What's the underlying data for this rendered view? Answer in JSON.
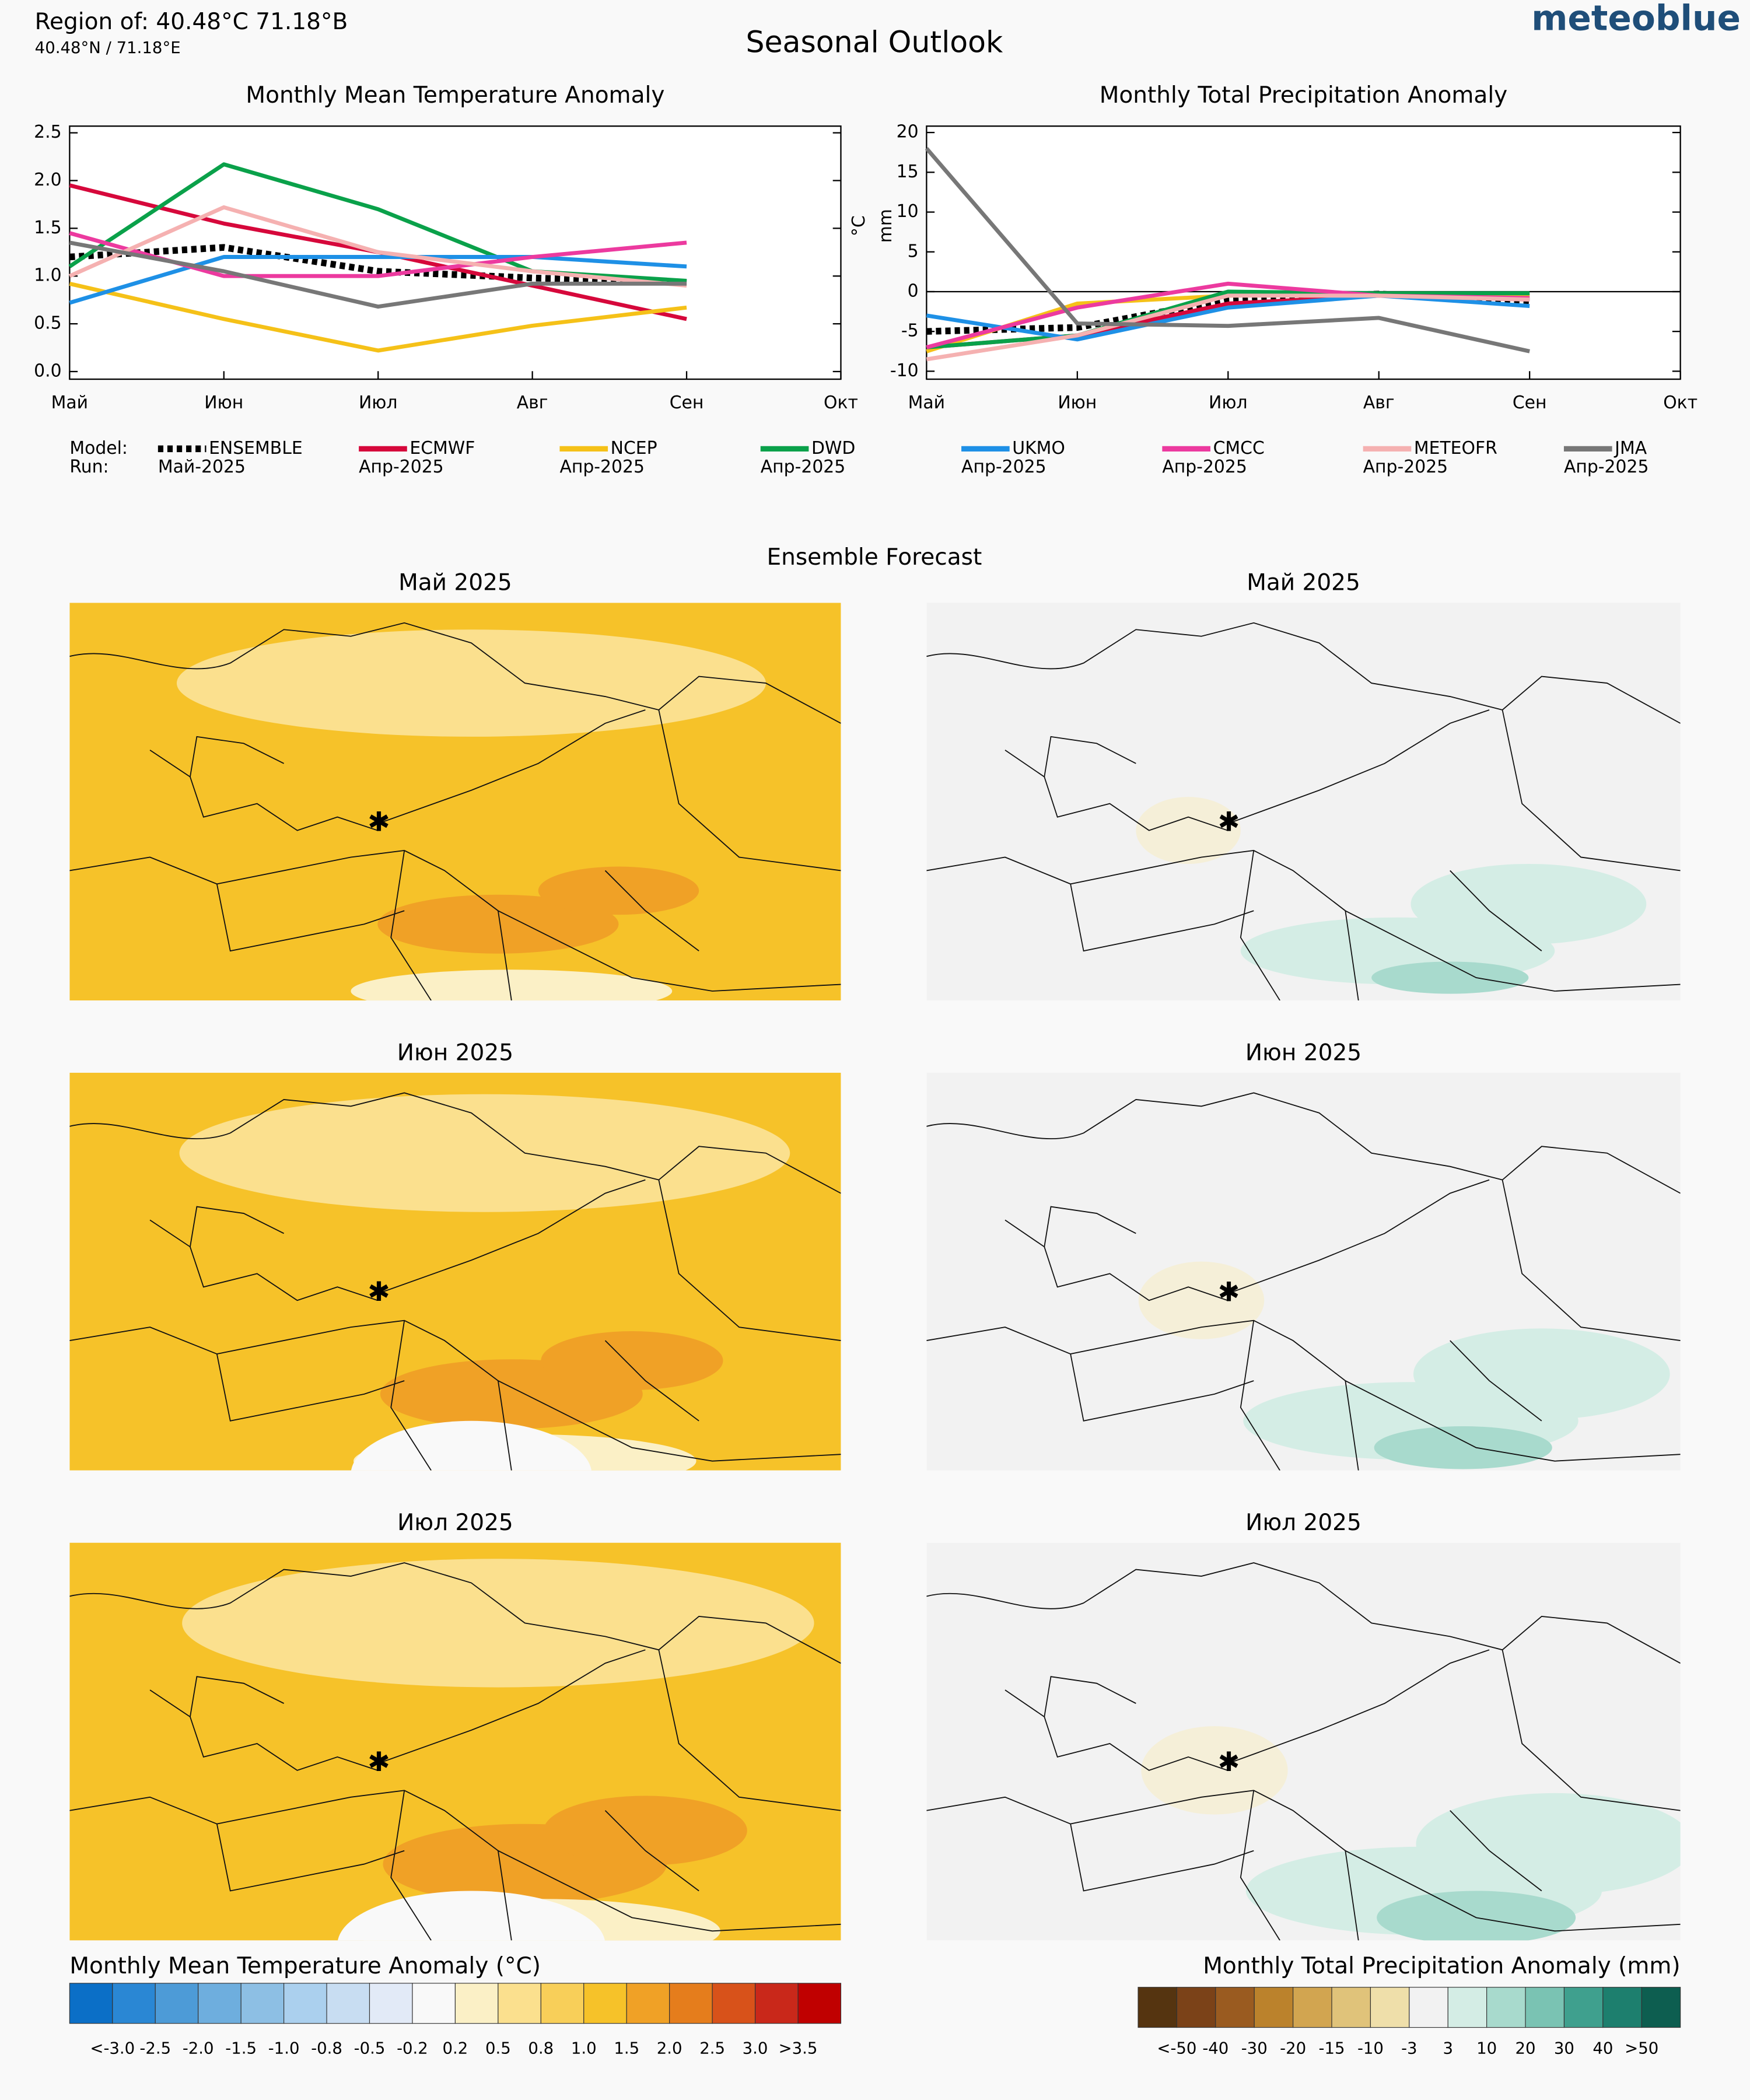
{
  "header": {
    "region": "Region of: 40.48°C 71.18°B",
    "coords": "40.48°N / 71.18°E",
    "title": "Seasonal Outlook",
    "brand": "meteoblue"
  },
  "legend_labels": [
    "Model:",
    "Run:"
  ],
  "chart_data": [
    {
      "type": "line",
      "title": "Monthly Mean Temperature Anomaly",
      "categories": [
        "Май",
        "Июн",
        "Июл",
        "Авг",
        "Сен",
        "Окт"
      ],
      "ylim": [
        -0.08,
        2.57
      ],
      "yticks": [
        {
          "value": 0,
          "label": "0.0"
        },
        0.5,
        {
          "value": 1,
          "label": "1.0"
        },
        1.5,
        {
          "value": 2,
          "label": "2.0"
        },
        2.5
      ],
      "series": [
        {
          "name": "ENSEMBLE",
          "run": "Май-2025",
          "color": "#000000",
          "dashed": true,
          "values": [
            1.2,
            1.3,
            1.05,
            0.98,
            0.93,
            null
          ]
        },
        {
          "name": "ECMWF",
          "run": "Апр-2025",
          "color": "#d6083b",
          "values": [
            1.95,
            1.55,
            1.25,
            0.9,
            0.55,
            null
          ]
        },
        {
          "name": "NCEP",
          "run": "Апр-2025",
          "color": "#f5c118",
          "values": [
            0.92,
            0.55,
            0.22,
            0.48,
            0.67,
            null
          ]
        },
        {
          "name": "DWD",
          "run": "Апр-2025",
          "color": "#0aa14a",
          "values": [
            1.1,
            2.17,
            1.7,
            1.05,
            0.95,
            null
          ]
        },
        {
          "name": "UKMO",
          "run": "Апр-2025",
          "color": "#1e90e6",
          "values": [
            0.72,
            1.2,
            1.2,
            1.2,
            1.1,
            null
          ]
        },
        {
          "name": "CMCC",
          "run": "Апр-2025",
          "color": "#ec3a9f",
          "values": [
            1.45,
            1.0,
            1.0,
            1.2,
            1.35,
            null
          ]
        },
        {
          "name": "METEOFR",
          "run": "Апр-2025",
          "color": "#f5b1b1",
          "values": [
            1.0,
            1.72,
            1.25,
            1.05,
            0.9,
            null
          ]
        },
        {
          "name": "JMA",
          "run": "Апр-2025",
          "color": "#777777",
          "values": [
            1.35,
            1.05,
            0.68,
            0.92,
            0.92,
            null
          ]
        }
      ]
    },
    {
      "type": "line",
      "title": "Monthly Total Precipitation Anomaly",
      "ylabel_lines": [
        "°C",
        "mm"
      ],
      "categories": [
        "Май",
        "Июн",
        "Июл",
        "Авг",
        "Сен",
        "Окт"
      ],
      "ylim": [
        -11,
        20.8
      ],
      "yticks": [
        -10,
        -5,
        0,
        5,
        10,
        15,
        20
      ],
      "zero_line": true,
      "series": [
        {
          "name": "ENSEMBLE",
          "color": "#000000",
          "dashed": true,
          "values": [
            -5,
            -4.5,
            -1,
            -0.3,
            -1.2,
            null
          ]
        },
        {
          "name": "ECMWF",
          "color": "#d6083b",
          "values": [
            -7,
            -5.5,
            -1.5,
            -0.5,
            -1,
            null
          ]
        },
        {
          "name": "NCEP",
          "color": "#f5c118",
          "values": [
            -7.5,
            -1.5,
            -0.5,
            -0.3,
            -0.5,
            null
          ]
        },
        {
          "name": "DWD",
          "color": "#0aa14a",
          "values": [
            -7,
            -5.5,
            0,
            -0.2,
            -0.2,
            null
          ]
        },
        {
          "name": "UKMO",
          "color": "#1e90e6",
          "values": [
            -3,
            -6,
            -2,
            -0.5,
            -1.8,
            null
          ]
        },
        {
          "name": "CMCC",
          "color": "#ec3a9f",
          "values": [
            -7,
            -2,
            1,
            -0.5,
            -0.8,
            null
          ]
        },
        {
          "name": "METEOFR",
          "color": "#f5b1b1",
          "values": [
            -8.5,
            -5.5,
            -0.5,
            -0.5,
            -1,
            null
          ]
        },
        {
          "name": "JMA",
          "color": "#777777",
          "values": [
            18,
            -4,
            -4.3,
            -3.3,
            -7.5,
            null
          ]
        }
      ]
    }
  ],
  "section_title": "Ensemble Forecast",
  "maps": [
    {
      "title": "Май 2025"
    },
    {
      "title": "Май 2025"
    },
    {
      "title": "Июн 2025"
    },
    {
      "title": "Июн 2025"
    },
    {
      "title": "Июл 2025"
    },
    {
      "title": "Июл 2025"
    }
  ],
  "colorbars": [
    {
      "title": "Monthly Mean Temperature Anomaly (°C)",
      "colors": [
        "#0b6fc7",
        "#2a87d4",
        "#4d9bd7",
        "#6eaede",
        "#8dbfe4",
        "#abd0ee",
        "#c8ddf2",
        "#e2eaf7",
        "#f9f9f9",
        "#fbf0c6",
        "#fbe08e",
        "#f8cf59",
        "#f6c229",
        "#f0a126",
        "#e57d1c",
        "#d8521a",
        "#c9281a",
        "#c00000"
      ],
      "labels": [
        "<-3.0",
        "-2.5",
        "-2.0",
        "-1.5",
        "-1.0",
        "-0.8",
        "-0.5",
        "-0.2",
        "0.2",
        "0.5",
        "0.8",
        "1.0",
        "1.5",
        "2.0",
        "2.5",
        "3.0",
        ">3.5"
      ]
    },
    {
      "title": "Monthly Total Precipitation Anomaly (mm)",
      "colors": [
        "#553410",
        "#7b4218",
        "#9a5b20",
        "#bb822c",
        "#d2a550",
        "#e0c37a",
        "#efdfaa",
        "#f2f2f2",
        "#d4ede5",
        "#a8dacd",
        "#7ac3b3",
        "#3fa08e",
        "#1d7f6e",
        "#0d5e50"
      ],
      "labels": [
        "<-50",
        "-40",
        "-30",
        "-20",
        "-15",
        "-10",
        "-3",
        "3",
        "10",
        "20",
        "30",
        "40",
        ">50"
      ]
    }
  ]
}
